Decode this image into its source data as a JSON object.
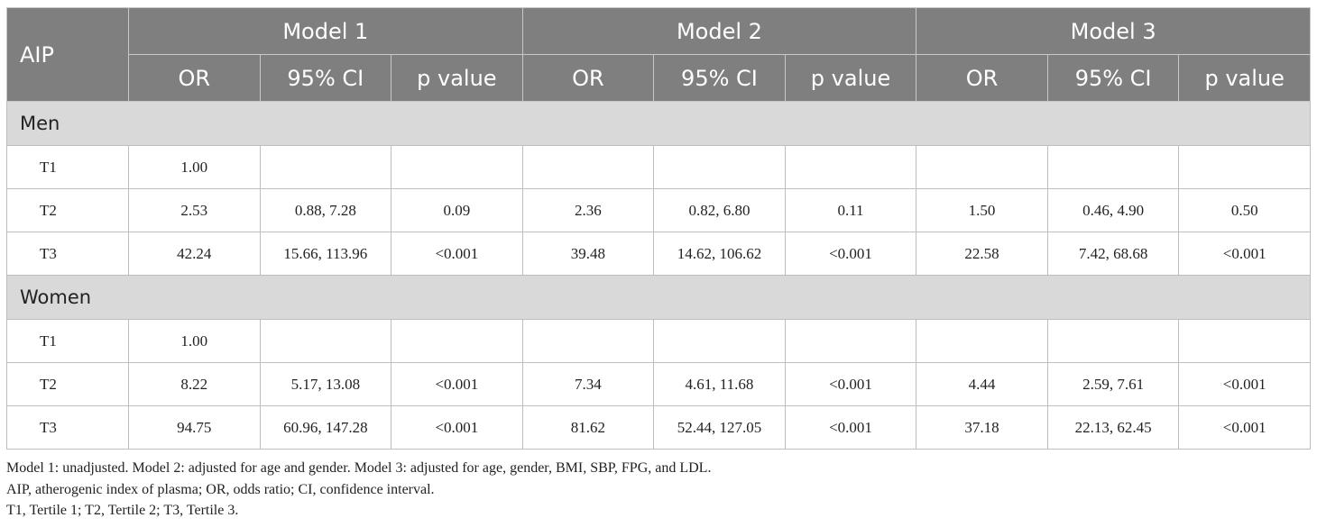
{
  "table": {
    "corner": "AIP",
    "groups": [
      "Model 1",
      "Model 2",
      "Model 3"
    ],
    "subheaders": [
      "OR",
      "95% CI",
      "p value",
      "OR",
      "95% CI",
      "p value",
      "OR",
      "95% CI",
      "p value"
    ],
    "sections": [
      {
        "title": "Men",
        "rows": [
          [
            "T1",
            "1.00",
            null,
            null,
            null,
            null,
            null,
            null,
            null,
            null
          ],
          [
            "T2",
            "2.53",
            "0.88, 7.28",
            "0.09",
            "2.36",
            "0.82, 6.80",
            "0.11",
            "1.50",
            "0.46, 4.90",
            "0.50"
          ],
          [
            "T3",
            "42.24",
            "15.66, 113.96",
            "<0.001",
            "39.48",
            "14.62, 106.62",
            "<0.001",
            "22.58",
            "7.42, 68.68",
            "<0.001"
          ]
        ]
      },
      {
        "title": "Women",
        "rows": [
          [
            "T1",
            "1.00",
            null,
            null,
            null,
            null,
            null,
            null,
            null,
            null
          ],
          [
            "T2",
            "8.22",
            "5.17, 13.08",
            "<0.001",
            "7.34",
            "4.61, 11.68",
            "<0.001",
            "4.44",
            "2.59, 7.61",
            "<0.001"
          ],
          [
            "T3",
            "94.75",
            "60.96, 147.28",
            "<0.001",
            "81.62",
            "52.44, 127.05",
            "<0.001",
            "37.18",
            "22.13, 62.45",
            "<0.001"
          ]
        ]
      }
    ]
  },
  "footnotes": [
    "Model 1: unadjusted. Model 2: adjusted for age and gender. Model 3: adjusted for age, gender, BMI, SBP, FPG, and LDL.",
    "AIP, atherogenic index of plasma; OR, odds ratio; CI, confidence interval.",
    "T1, Tertile 1; T2, Tertile 2; T3, Tertile 3."
  ]
}
